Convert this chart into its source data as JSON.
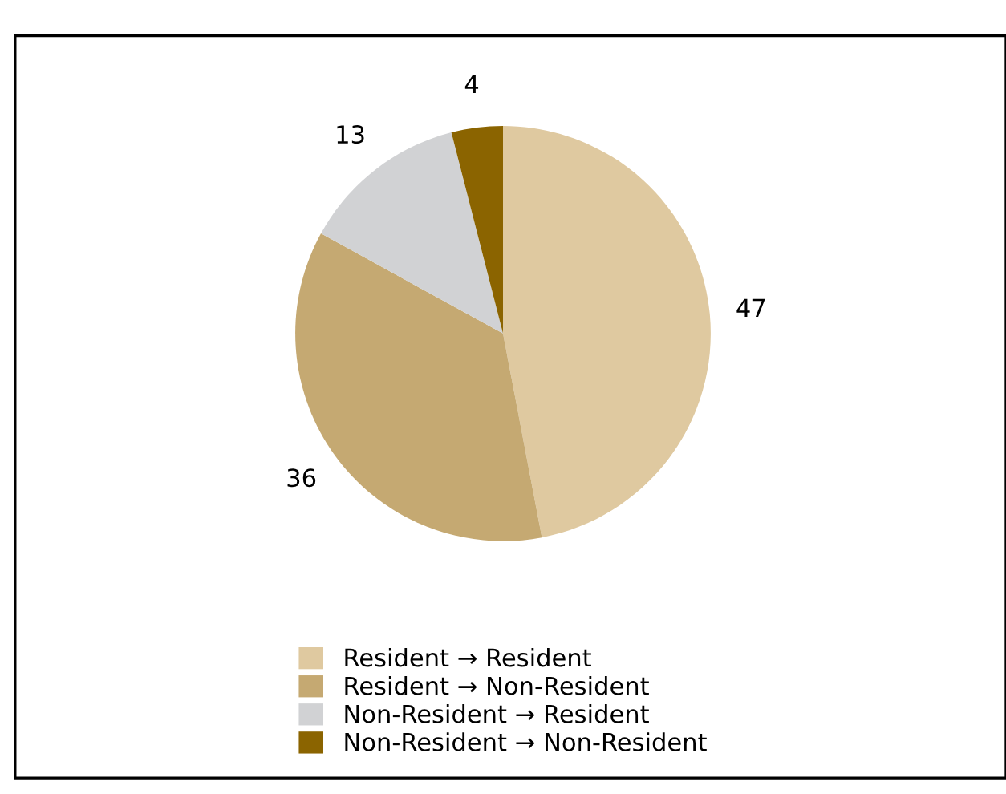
{
  "chart_data": {
    "type": "pie",
    "categories": [
      "Resident → Resident",
      "Resident → Non-Resident",
      "Non-Resident → Resident",
      "Non-Resident → Non-Resident"
    ],
    "values": [
      47,
      36,
      13,
      4
    ],
    "colors": [
      "#dfc9a0",
      "#c5a972",
      "#d1d2d4",
      "#8b6400"
    ],
    "data_labels": true,
    "legend": "bottom"
  }
}
